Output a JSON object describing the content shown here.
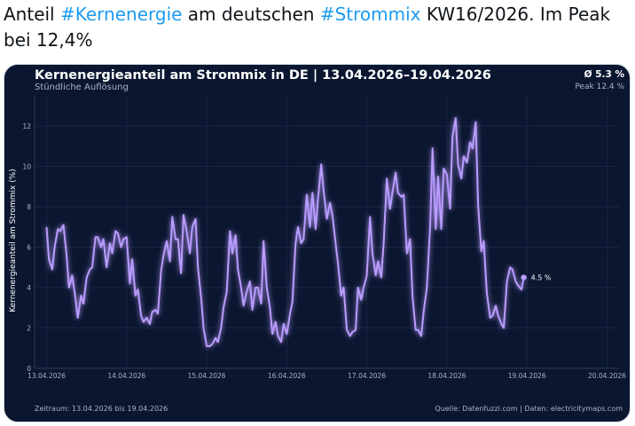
{
  "tweet": {
    "t1": "Anteil ",
    "h1": "#Kernenergie",
    "t2": " am deutschen ",
    "h2": "#Strommix",
    "t3": " KW16/2026. Im Peak bei 12,4%"
  },
  "card": {
    "title": "Kernenergieanteil am Strommix in DE | 13.04.2026–19.04.2026",
    "subtitle": "Stündliche Auflösung",
    "avg": "Ø 5.3 %",
    "peak": "Peak 12.4 %",
    "footer_left": "Zeitraum: 13.04.2026 bis 19.04.2026",
    "footer_right": "Quelle: Datenfuzzi.com | Daten: electricitymaps.com",
    "last_label": "4.5 %"
  },
  "colors": {
    "background": "#0b1630",
    "line": "#b99cff",
    "text": "#ffffff",
    "muted": "#aab3c8",
    "hashtag": "#1d9bf0"
  },
  "chart_data": {
    "type": "line",
    "ylabel": "Kernenergieanteil am Strommix (%)",
    "ylim": [
      0,
      13.5
    ],
    "yticks": [
      0,
      2,
      4,
      6,
      8,
      10,
      12
    ],
    "xlim": [
      -0.15,
      7.15
    ],
    "xtick_labels": [
      "13.04.2026",
      "14.04.2026",
      "15.04.2026",
      "16.04.2026",
      "17.04.2026",
      "18.04.2026",
      "19.04.2026",
      "20.04.2026"
    ],
    "grid": true,
    "series": [
      {
        "values": [
          [
            0.0,
            7.0
          ],
          [
            0.03,
            5.4
          ],
          [
            0.07,
            4.9
          ],
          [
            0.1,
            6.0
          ],
          [
            0.14,
            6.9
          ],
          [
            0.17,
            6.8
          ],
          [
            0.21,
            7.1
          ],
          [
            0.25,
            5.6
          ],
          [
            0.28,
            4.0
          ],
          [
            0.32,
            4.6
          ],
          [
            0.36,
            3.5
          ],
          [
            0.39,
            2.5
          ],
          [
            0.43,
            3.6
          ],
          [
            0.46,
            3.2
          ],
          [
            0.5,
            4.5
          ],
          [
            0.54,
            4.9
          ],
          [
            0.57,
            5.0
          ],
          [
            0.61,
            6.5
          ],
          [
            0.64,
            6.5
          ],
          [
            0.68,
            6.0
          ],
          [
            0.71,
            6.4
          ],
          [
            0.75,
            5.0
          ],
          [
            0.79,
            6.2
          ],
          [
            0.82,
            5.7
          ],
          [
            0.86,
            6.8
          ],
          [
            0.89,
            6.7
          ],
          [
            0.93,
            6.0
          ],
          [
            0.96,
            6.4
          ],
          [
            1.0,
            6.5
          ],
          [
            1.04,
            4.2
          ],
          [
            1.07,
            5.4
          ],
          [
            1.11,
            3.6
          ],
          [
            1.14,
            3.9
          ],
          [
            1.18,
            2.6
          ],
          [
            1.21,
            2.3
          ],
          [
            1.25,
            2.5
          ],
          [
            1.29,
            2.2
          ],
          [
            1.32,
            2.8
          ],
          [
            1.36,
            2.9
          ],
          [
            1.39,
            2.7
          ],
          [
            1.43,
            4.8
          ],
          [
            1.46,
            5.6
          ],
          [
            1.5,
            6.3
          ],
          [
            1.54,
            5.3
          ],
          [
            1.57,
            7.5
          ],
          [
            1.61,
            6.4
          ],
          [
            1.64,
            6.4
          ],
          [
            1.68,
            4.7
          ],
          [
            1.71,
            7.6
          ],
          [
            1.75,
            6.8
          ],
          [
            1.79,
            5.7
          ],
          [
            1.82,
            7.0
          ],
          [
            1.86,
            7.4
          ],
          [
            1.89,
            5.0
          ],
          [
            1.93,
            3.5
          ],
          [
            1.96,
            2.0
          ],
          [
            2.0,
            1.1
          ],
          [
            2.04,
            1.1
          ],
          [
            2.07,
            1.2
          ],
          [
            2.11,
            1.5
          ],
          [
            2.14,
            1.3
          ],
          [
            2.18,
            2.0
          ],
          [
            2.21,
            3.0
          ],
          [
            2.25,
            3.8
          ],
          [
            2.29,
            6.8
          ],
          [
            2.32,
            5.7
          ],
          [
            2.36,
            6.6
          ],
          [
            2.39,
            4.9
          ],
          [
            2.43,
            4.0
          ],
          [
            2.46,
            3.1
          ],
          [
            2.5,
            3.8
          ],
          [
            2.54,
            4.3
          ],
          [
            2.57,
            2.9
          ],
          [
            2.61,
            4.0
          ],
          [
            2.64,
            4.0
          ],
          [
            2.68,
            3.2
          ],
          [
            2.71,
            6.3
          ],
          [
            2.75,
            4.0
          ],
          [
            2.79,
            3.0
          ],
          [
            2.82,
            1.7
          ],
          [
            2.86,
            2.3
          ],
          [
            2.89,
            1.6
          ],
          [
            2.93,
            1.3
          ],
          [
            2.96,
            2.2
          ],
          [
            3.0,
            1.7
          ],
          [
            3.04,
            2.7
          ],
          [
            3.07,
            3.3
          ],
          [
            3.11,
            6.2
          ],
          [
            3.14,
            7.0
          ],
          [
            3.18,
            6.2
          ],
          [
            3.21,
            6.4
          ],
          [
            3.25,
            8.6
          ],
          [
            3.29,
            7.0
          ],
          [
            3.32,
            8.7
          ],
          [
            3.36,
            6.9
          ],
          [
            3.39,
            8.4
          ],
          [
            3.43,
            10.1
          ],
          [
            3.46,
            8.8
          ],
          [
            3.5,
            7.4
          ],
          [
            3.54,
            8.2
          ],
          [
            3.57,
            7.6
          ],
          [
            3.61,
            6.2
          ],
          [
            3.64,
            5.2
          ],
          [
            3.68,
            3.6
          ],
          [
            3.71,
            4.0
          ],
          [
            3.75,
            1.9
          ],
          [
            3.79,
            1.6
          ],
          [
            3.82,
            1.8
          ],
          [
            3.86,
            1.9
          ],
          [
            3.89,
            4.0
          ],
          [
            3.93,
            3.4
          ],
          [
            3.96,
            4.0
          ],
          [
            4.0,
            4.6
          ],
          [
            4.04,
            7.5
          ],
          [
            4.07,
            5.7
          ],
          [
            4.11,
            4.6
          ],
          [
            4.14,
            5.3
          ],
          [
            4.18,
            4.5
          ],
          [
            4.21,
            6.2
          ],
          [
            4.25,
            9.4
          ],
          [
            4.29,
            7.9
          ],
          [
            4.32,
            8.7
          ],
          [
            4.36,
            9.7
          ],
          [
            4.39,
            8.7
          ],
          [
            4.43,
            8.5
          ],
          [
            4.46,
            8.6
          ],
          [
            4.5,
            5.7
          ],
          [
            4.54,
            6.4
          ],
          [
            4.57,
            3.6
          ],
          [
            4.61,
            1.9
          ],
          [
            4.64,
            1.9
          ],
          [
            4.68,
            1.6
          ],
          [
            4.71,
            2.8
          ],
          [
            4.75,
            4.0
          ],
          [
            4.79,
            7.0
          ],
          [
            4.82,
            10.9
          ],
          [
            4.86,
            6.9
          ],
          [
            4.89,
            9.5
          ],
          [
            4.93,
            6.9
          ],
          [
            4.96,
            9.9
          ],
          [
            5.0,
            9.6
          ],
          [
            5.04,
            7.9
          ],
          [
            5.07,
            11.5
          ],
          [
            5.11,
            12.4
          ],
          [
            5.14,
            10.1
          ],
          [
            5.18,
            9.4
          ],
          [
            5.21,
            10.5
          ],
          [
            5.25,
            10.2
          ],
          [
            5.29,
            11.2
          ],
          [
            5.32,
            10.9
          ],
          [
            5.36,
            12.2
          ],
          [
            5.39,
            8.1
          ],
          [
            5.43,
            5.8
          ],
          [
            5.46,
            6.3
          ],
          [
            5.5,
            3.7
          ],
          [
            5.54,
            2.5
          ],
          [
            5.57,
            2.6
          ],
          [
            5.61,
            3.1
          ],
          [
            5.64,
            2.6
          ],
          [
            5.68,
            2.2
          ],
          [
            5.71,
            2.0
          ],
          [
            5.75,
            4.3
          ],
          [
            5.79,
            5.0
          ],
          [
            5.82,
            4.9
          ],
          [
            5.86,
            4.3
          ],
          [
            5.89,
            4.1
          ],
          [
            5.93,
            3.9
          ],
          [
            5.96,
            4.5
          ]
        ]
      }
    ]
  }
}
